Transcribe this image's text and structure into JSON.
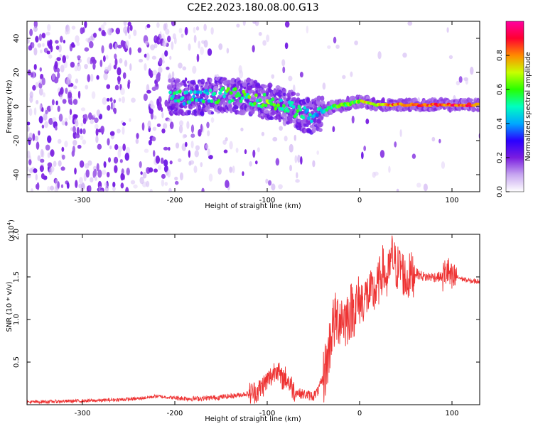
{
  "title": "C2E2.2023.180.08.00.G13",
  "chart_data": [
    {
      "type": "heatmap",
      "xlabel": "Height of straight line (km)",
      "ylabel": "Frequency (Hz)",
      "xlim": [
        -360,
        130
      ],
      "ylim": [
        -50,
        50
      ],
      "xticks": [
        -300,
        -200,
        -100,
        0,
        100
      ],
      "yticks": [
        -40,
        -20,
        0,
        20,
        40
      ],
      "grid": false,
      "colorbar": {
        "label": "Normalized spectral amplitude",
        "range": [
          0,
          1
        ],
        "ticks": [
          "0.0",
          "0.2",
          "0.4",
          "0.6",
          "0.8"
        ],
        "colors": [
          "#ffffff",
          "#c7a6f0",
          "#7a1de0",
          "#2a00ff",
          "#00a8ff",
          "#00ffc0",
          "#28ff00",
          "#c8ff00",
          "#ff8a00",
          "#ff0030",
          "#ff00a0"
        ]
      },
      "ridge": [
        {
          "x": -205,
          "y": 6,
          "amp": 0.45
        },
        {
          "x": -190,
          "y": 5,
          "amp": 0.5
        },
        {
          "x": -175,
          "y": 5,
          "amp": 0.45
        },
        {
          "x": -160,
          "y": 6,
          "amp": 0.5
        },
        {
          "x": -145,
          "y": 7,
          "amp": 0.55
        },
        {
          "x": -130,
          "y": 6,
          "amp": 0.55
        },
        {
          "x": -115,
          "y": 5,
          "amp": 0.55
        },
        {
          "x": -100,
          "y": 3,
          "amp": 0.6
        },
        {
          "x": -85,
          "y": 1,
          "amp": 0.55
        },
        {
          "x": -70,
          "y": -2,
          "amp": 0.5
        },
        {
          "x": -58,
          "y": -5,
          "amp": 0.45
        },
        {
          "x": -48,
          "y": -6,
          "amp": 0.45
        },
        {
          "x": -40,
          "y": -3,
          "amp": 0.45
        },
        {
          "x": -30,
          "y": 0,
          "amp": 0.55
        },
        {
          "x": -15,
          "y": 1,
          "amp": 0.6
        },
        {
          "x": 0,
          "y": 3,
          "amp": 0.65
        },
        {
          "x": 20,
          "y": 1,
          "amp": 0.75
        },
        {
          "x": 50,
          "y": 1,
          "amp": 0.85
        },
        {
          "x": 80,
          "y": 1,
          "amp": 0.85
        },
        {
          "x": 110,
          "y": 1,
          "amp": 0.85
        },
        {
          "x": 130,
          "y": 1,
          "amp": 0.85
        }
      ]
    },
    {
      "type": "line",
      "xlabel": "Height of straight line (km)",
      "ylabel": "SNR (10 * v/v)",
      "y_multiplier": "(x10",
      "y_multiplier_exp": "4",
      "xlim": [
        -360,
        130
      ],
      "ylim": [
        0,
        2.0
      ],
      "xticks": [
        -300,
        -200,
        -100,
        0,
        100
      ],
      "yticks": [
        "0.5",
        "1.0",
        "1.5",
        "2.0"
      ],
      "grid": false,
      "color": "#ee3333",
      "x": [
        -360,
        -320,
        -280,
        -240,
        -220,
        -200,
        -180,
        -160,
        -140,
        -120,
        -110,
        -100,
        -95,
        -90,
        -85,
        -80,
        -75,
        -70,
        -60,
        -50,
        -45,
        -40,
        -35,
        -30,
        -25,
        -20,
        -15,
        -10,
        -5,
        0,
        5,
        10,
        15,
        20,
        25,
        30,
        35,
        40,
        45,
        50,
        55,
        60,
        70,
        80,
        90,
        95,
        100,
        105,
        110,
        120,
        130
      ],
      "y": [
        0.03,
        0.04,
        0.05,
        0.07,
        0.1,
        0.08,
        0.07,
        0.08,
        0.1,
        0.13,
        0.16,
        0.28,
        0.34,
        0.45,
        0.3,
        0.32,
        0.24,
        0.15,
        0.12,
        0.1,
        0.16,
        0.3,
        0.5,
        0.9,
        1.0,
        1.05,
        1.0,
        1.1,
        1.15,
        1.2,
        1.25,
        1.3,
        1.3,
        1.4,
        1.6,
        1.45,
        1.75,
        1.6,
        1.62,
        1.45,
        1.52,
        1.55,
        1.5,
        1.5,
        1.5,
        1.58,
        1.45,
        1.5,
        1.48,
        1.45,
        1.45
      ]
    }
  ]
}
